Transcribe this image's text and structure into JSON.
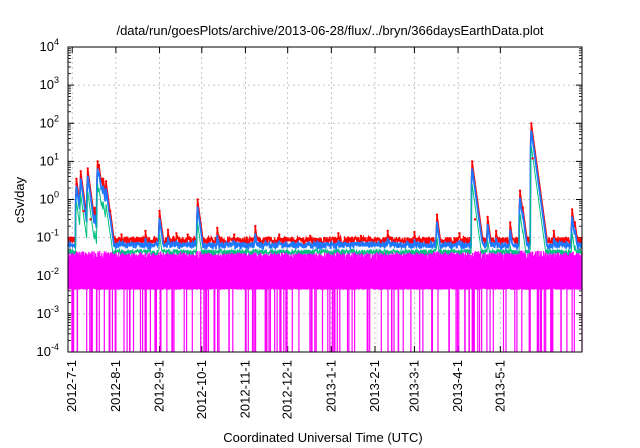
{
  "chart_data": {
    "type": "line",
    "title": "/data/run/goesPlots/archive/2013-06-28/flux/../bryn/366daysEarthData.plot",
    "xlabel": "Coordinated Universal Time (UTC)",
    "ylabel": "cSv/day",
    "yscale": "log",
    "ylim": [
      0.0001,
      10000
    ],
    "y_ticks": [
      {
        "base": "10",
        "exp": "-4"
      },
      {
        "base": "10",
        "exp": "-3"
      },
      {
        "base": "10",
        "exp": "-2"
      },
      {
        "base": "10",
        "exp": "-1"
      },
      {
        "base": "10",
        "exp": "0"
      },
      {
        "base": "10",
        "exp": "1"
      },
      {
        "base": "10",
        "exp": "2"
      },
      {
        "base": "10",
        "exp": "3"
      },
      {
        "base": "10",
        "exp": "4"
      }
    ],
    "xlim": [
      "2012-06-28",
      "2013-06-28"
    ],
    "x_ticks": [
      "2012-7-1",
      "2012-8-1",
      "2012-9-1",
      "2012-10-1",
      "2012-11-1",
      "2012-12-1",
      "2013-1-1",
      "2013-2-1",
      "2013-3-1",
      "2013-4-1",
      "2013-5-1"
    ],
    "grid": true,
    "colors": {
      "red": "#ff0000",
      "blue": "#1e78ff",
      "green": "#00c080",
      "magenta": "#ff00ff"
    },
    "series": [
      {
        "color": "#ff0000",
        "baseline": 0.085,
        "peaks": [
          {
            "date": "2012-07-04",
            "value": 3.5
          },
          {
            "date": "2012-07-07",
            "value": 5.5
          },
          {
            "date": "2012-07-09",
            "value": 0.5
          },
          {
            "date": "2012-07-12",
            "value": 6.5
          },
          {
            "date": "2012-07-14",
            "value": 0.3
          },
          {
            "date": "2012-07-17",
            "value": 0.6
          },
          {
            "date": "2012-07-19",
            "value": 10
          },
          {
            "date": "2012-07-20",
            "value": 8
          },
          {
            "date": "2012-07-22",
            "value": 3.5
          },
          {
            "date": "2012-07-23",
            "value": 3.5
          },
          {
            "date": "2012-07-25",
            "value": 3
          },
          {
            "date": "2012-07-28",
            "value": 0.5
          },
          {
            "date": "2012-08-05",
            "value": 0.12
          },
          {
            "date": "2012-08-22",
            "value": 0.15
          },
          {
            "date": "2012-09-01",
            "value": 0.5
          },
          {
            "date": "2012-09-07",
            "value": 0.16
          },
          {
            "date": "2012-09-13",
            "value": 0.13
          },
          {
            "date": "2012-09-21",
            "value": 0.12
          },
          {
            "date": "2012-09-28",
            "value": 1.0
          },
          {
            "date": "2012-10-12",
            "value": 0.18
          },
          {
            "date": "2012-10-24",
            "value": 0.12
          },
          {
            "date": "2012-11-08",
            "value": 0.2
          },
          {
            "date": "2012-11-25",
            "value": 0.12
          },
          {
            "date": "2012-12-17",
            "value": 0.11
          },
          {
            "date": "2013-01-06",
            "value": 0.13
          },
          {
            "date": "2013-01-22",
            "value": 0.11
          },
          {
            "date": "2013-02-10",
            "value": 0.15
          },
          {
            "date": "2013-03-01",
            "value": 0.14
          },
          {
            "date": "2013-03-17",
            "value": 0.4
          },
          {
            "date": "2013-04-02",
            "value": 0.13
          },
          {
            "date": "2013-04-11",
            "value": 10
          },
          {
            "date": "2013-04-13",
            "value": 0.3
          },
          {
            "date": "2013-04-22",
            "value": 0.35
          },
          {
            "date": "2013-04-28",
            "value": 0.15
          },
          {
            "date": "2013-05-08",
            "value": 0.25
          },
          {
            "date": "2013-05-15",
            "value": 1.7
          },
          {
            "date": "2013-05-17",
            "value": 0.6
          },
          {
            "date": "2013-05-23",
            "value": 100
          },
          {
            "date": "2013-05-24",
            "value": 12
          },
          {
            "date": "2013-06-08",
            "value": 0.15
          },
          {
            "date": "2013-06-21",
            "value": 0.55
          },
          {
            "date": "2013-06-23",
            "value": 0.25
          }
        ]
      },
      {
        "color": "#1e78ff",
        "baseline": 0.07,
        "scale": 0.65
      },
      {
        "color": "#00c080",
        "baseline": 0.045,
        "scale": 0.25
      },
      {
        "color": "#ff00ff",
        "band": [
          0.0045,
          0.035
        ],
        "dropouts_to_bottom": true
      }
    ]
  }
}
